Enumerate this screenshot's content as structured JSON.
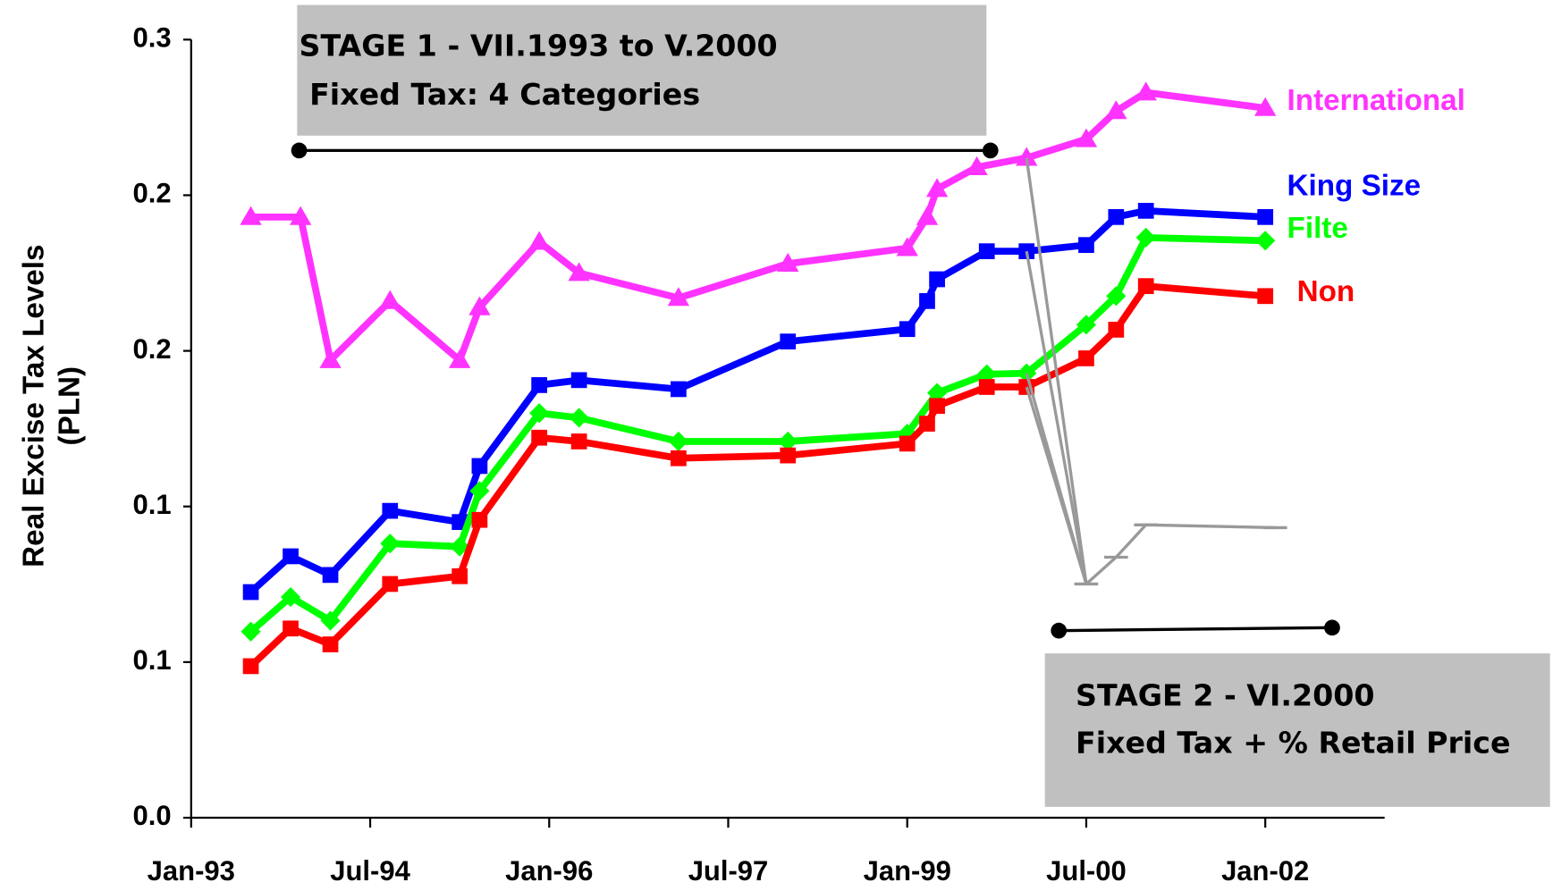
{
  "chart_data": {
    "type": "line",
    "y_label": [
      "Real Excise Tax Levels",
      "(PLN)"
    ],
    "xlim": [
      "1993-01",
      "2003-01"
    ],
    "xticks": [
      {
        "value": "1993-01",
        "label": "Jan-93"
      },
      {
        "value": "1994-07",
        "label": "Jul-94"
      },
      {
        "value": "1996-01",
        "label": "Jan-96"
      },
      {
        "value": "1997-07",
        "label": "Jul-97"
      },
      {
        "value": "1999-01",
        "label": "Jan-99"
      },
      {
        "value": "2000-07",
        "label": "Jul-00"
      },
      {
        "value": "2002-01",
        "label": "Jan-02"
      }
    ],
    "ylim": [
      0,
      0.25
    ],
    "yticks": [
      {
        "value": 0,
        "label": "0.0"
      },
      {
        "value": 0.05,
        "label": "0.1"
      },
      0.1,
      {
        "value": 0.15,
        "label": "0.2"
      },
      0.2,
      {
        "value": 0.25,
        "label": "0.3"
      }
    ],
    "series": [
      {
        "name": "International",
        "color": "#ff33ff",
        "marker": "triangle",
        "x": [
          "1993-07",
          "1993-12",
          "1994-03",
          "1994-09",
          "1995-04",
          "1995-06",
          "1995-12",
          "1996-04",
          "1997-02",
          "1998-01",
          "1999-01",
          "1999-03",
          "1999-04",
          "1999-08",
          "2000-01",
          "2000-07",
          "2000-10",
          "2001-01",
          "2002-01"
        ],
        "values": [
          0.193,
          0.193,
          0.147,
          0.166,
          0.147,
          0.164,
          0.185,
          0.175,
          0.167,
          0.178,
          0.183,
          0.193,
          0.202,
          0.209,
          0.212,
          0.218,
          0.227,
          0.233,
          0.228
        ]
      },
      {
        "name": "King Size",
        "color": "#0000ff",
        "marker": "square",
        "x": [
          "1993-07",
          "1993-11",
          "1994-03",
          "1994-09",
          "1995-04",
          "1995-06",
          "1995-12",
          "1996-04",
          "1997-02",
          "1998-01",
          "1999-01",
          "1999-03",
          "1999-04",
          "1999-09",
          "2000-01",
          "2000-07",
          "2000-10",
          "2001-01",
          "2002-01"
        ],
        "values": [
          0.0725,
          0.084,
          0.078,
          0.0986,
          0.095,
          0.113,
          0.139,
          0.1406,
          0.1377,
          0.153,
          0.157,
          0.166,
          0.173,
          0.182,
          0.182,
          0.184,
          0.193,
          0.195,
          0.193
        ]
      },
      {
        "name": "Filte",
        "color": "#00ff00",
        "marker": "diamond",
        "x": [
          "1993-07",
          "1993-11",
          "1994-03",
          "1994-09",
          "1995-04",
          "1995-06",
          "1995-12",
          "1996-04",
          "1997-02",
          "1998-01",
          "1999-01",
          "1999-04",
          "1999-09",
          "2000-01",
          "2000-07",
          "2000-10",
          "2001-01",
          "2002-01"
        ],
        "values": [
          0.0598,
          0.0709,
          0.0633,
          0.0881,
          0.0871,
          0.105,
          0.13,
          0.1285,
          0.1209,
          0.1209,
          0.1234,
          0.1365,
          0.1425,
          0.1428,
          0.1584,
          0.1676,
          0.1864,
          0.1854
        ]
      },
      {
        "name": "Non",
        "color": "#ff0000",
        "marker": "square",
        "x": [
          "1993-07",
          "1993-11",
          "1994-03",
          "1994-09",
          "1995-04",
          "1995-06",
          "1995-12",
          "1996-04",
          "1997-02",
          "1998-01",
          "1999-01",
          "1999-03",
          "1999-04",
          "1999-09",
          "2000-01",
          "2000-07",
          "2000-10",
          "2001-01",
          "2002-01"
        ],
        "values": [
          0.0487,
          0.0608,
          0.0557,
          0.0751,
          0.0776,
          0.0957,
          0.1221,
          0.1209,
          0.1155,
          0.1164,
          0.1202,
          0.1266,
          0.1323,
          0.1384,
          0.1384,
          0.1476,
          0.1568,
          0.1708,
          0.1676
        ]
      },
      {
        "color": "#999999",
        "marker": "dash",
        "x": [
          "2000-07",
          "2000-10",
          "2001-01",
          "2002-02"
        ],
        "values": [
          0.0751,
          0.0837,
          0.0941,
          0.0932
        ]
      }
    ],
    "annotations": [
      [
        "STAGE 1 - VII.1993 to V.2000",
        " Fixed Tax: 4 Categories"
      ],
      [
        "STAGE 2 - VI.2000",
        "Fixed Tax + % Retail Price"
      ]
    ]
  }
}
